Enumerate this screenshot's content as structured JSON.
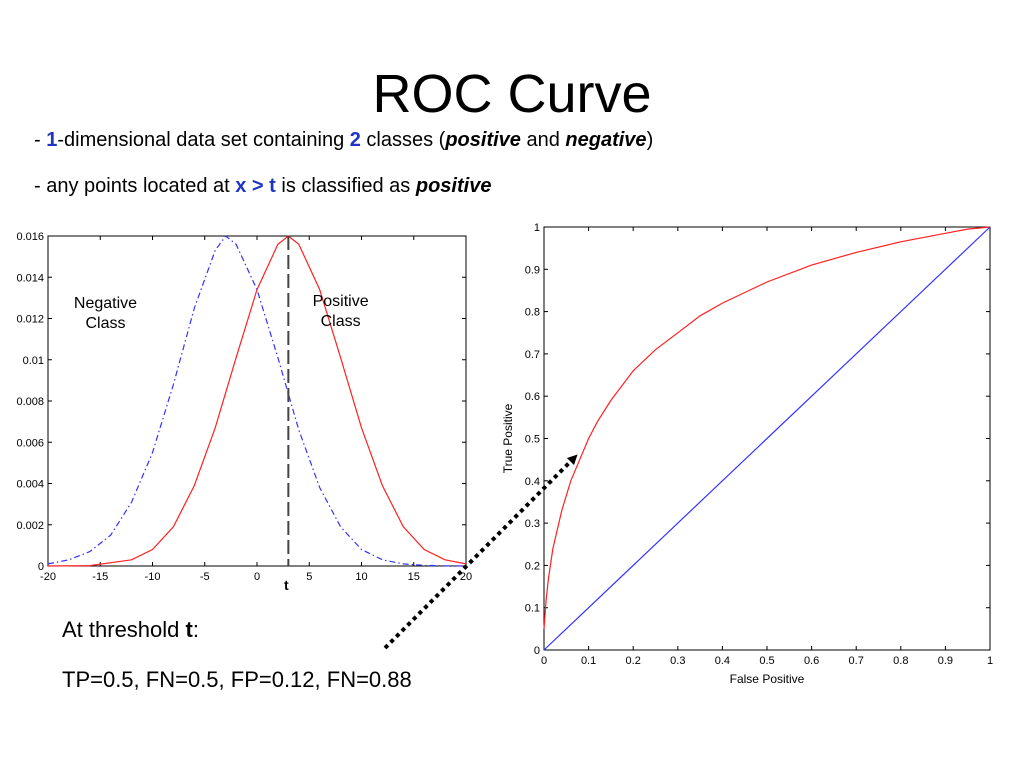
{
  "slide": {
    "title": "ROC Curve",
    "bullet1": {
      "dash": "- ",
      "n1": "1",
      "t1": "-dimensional data set containing ",
      "n2": "2",
      "t2": " classes (",
      "pos": "positive",
      "and": " and ",
      "neg": "negative",
      "close": ")"
    },
    "bullet2": {
      "t1": "- any points located at ",
      "cond": "x > t",
      "t2": " is classified as ",
      "pos": "positive"
    },
    "caption1": {
      "t1": "At threshold ",
      "t": "t",
      "colon": ":"
    },
    "caption2": "TP=0.5, FN=0.5, FP=0.12, FN=0.88"
  },
  "chart_data": [
    {
      "type": "line",
      "title": "",
      "xlabel": "",
      "ylabel": "",
      "xlim": [
        -20,
        20
      ],
      "ylim": [
        0,
        0.016
      ],
      "xticks": [
        -20,
        -15,
        -10,
        -5,
        0,
        5,
        10,
        15,
        20
      ],
      "xtick_labels": [
        "-20",
        "-15",
        "-10",
        "-5",
        "0",
        "5",
        "10",
        "15",
        "20"
      ],
      "yticks": [
        0,
        0.002,
        0.004,
        0.006,
        0.008,
        0.01,
        0.012,
        0.014,
        0.016
      ],
      "ytick_labels": [
        "0",
        "0.002",
        "0.004",
        "0.006",
        "0.008",
        "0.01",
        "0.012",
        "0.014",
        "0.016"
      ],
      "grid": false,
      "series": [
        {
          "name": "Negative Class",
          "color": "#3333ff",
          "style": "dash-dot",
          "x": [
            -20,
            -18,
            -16,
            -14,
            -12,
            -10,
            -8,
            -6,
            -4,
            -3,
            -2,
            0,
            2,
            4,
            6,
            8,
            10,
            12,
            14,
            16,
            18,
            20
          ],
          "y": [
            0.0001,
            0.0003,
            0.0007,
            0.0015,
            0.0031,
            0.0055,
            0.0088,
            0.0125,
            0.0153,
            0.016,
            0.0156,
            0.0134,
            0.0101,
            0.0066,
            0.0038,
            0.0019,
            0.0008,
            0.0003,
            0.0001,
            3e-05,
            1e-05,
            0
          ]
        },
        {
          "name": "Positive Class",
          "color": "#ff2020",
          "style": "solid",
          "x": [
            -20,
            -16,
            -12,
            -10,
            -8,
            -6,
            -4,
            -2,
            0,
            2,
            3,
            4,
            6,
            8,
            10,
            12,
            14,
            16,
            18,
            20
          ],
          "y": [
            0,
            2e-05,
            0.0003,
            0.0008,
            0.0019,
            0.0039,
            0.0067,
            0.0101,
            0.0134,
            0.0156,
            0.016,
            0.0156,
            0.0134,
            0.0101,
            0.0067,
            0.0039,
            0.0019,
            0.0008,
            0.0003,
            0.0001
          ]
        }
      ],
      "threshold": {
        "x": 3,
        "label": "t"
      },
      "annotations": [
        {
          "text": [
            "Negative",
            "Class"
          ],
          "x": -14.5,
          "y": 0.0125
        },
        {
          "text": [
            "Positive",
            "Class"
          ],
          "x": 8,
          "y": 0.0126
        }
      ]
    },
    {
      "type": "line",
      "title": "",
      "xlabel": "False Positive",
      "ylabel": "True Positive",
      "xlim": [
        0,
        1
      ],
      "ylim": [
        0,
        1
      ],
      "xticks": [
        0,
        0.1,
        0.2,
        0.3,
        0.4,
        0.5,
        0.6,
        0.7,
        0.8,
        0.9,
        1
      ],
      "xtick_labels": [
        "0",
        "0.1",
        "0.2",
        "0.3",
        "0.4",
        "0.5",
        "0.6",
        "0.7",
        "0.8",
        "0.9",
        "1"
      ],
      "yticks": [
        0,
        0.1,
        0.2,
        0.3,
        0.4,
        0.5,
        0.6,
        0.7,
        0.8,
        0.9,
        1
      ],
      "ytick_labels": [
        "0",
        "0.1",
        "0.2",
        "0.3",
        "0.4",
        "0.5",
        "0.6",
        "0.7",
        "0.8",
        "0.9",
        "1"
      ],
      "grid": false,
      "series": [
        {
          "color": "#ff2020",
          "x": [
            0,
            0.005,
            0.01,
            0.02,
            0.04,
            0.06,
            0.08,
            0.1,
            0.12,
            0.15,
            0.2,
            0.25,
            0.3,
            0.35,
            0.4,
            0.5,
            0.6,
            0.7,
            0.8,
            0.9,
            0.95,
            1
          ],
          "y": [
            0.05,
            0.12,
            0.17,
            0.24,
            0.33,
            0.4,
            0.45,
            0.5,
            0.54,
            0.59,
            0.66,
            0.71,
            0.75,
            0.79,
            0.82,
            0.87,
            0.91,
            0.94,
            0.965,
            0.985,
            0.995,
            1
          ]
        },
        {
          "color": "#3333ff",
          "x": [
            0,
            1
          ],
          "y": [
            0,
            1
          ]
        }
      ]
    }
  ]
}
